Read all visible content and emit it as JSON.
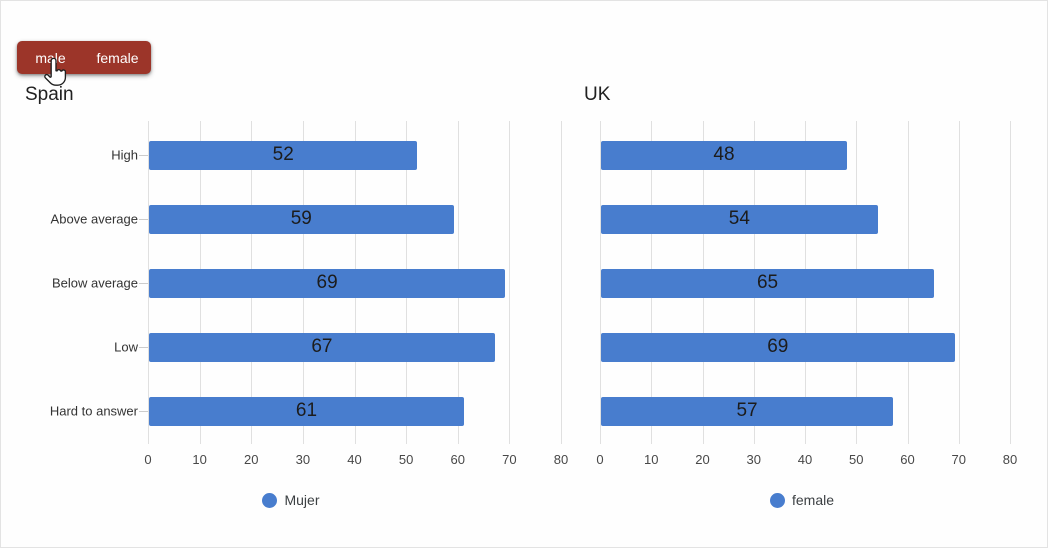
{
  "toggle": {
    "options": [
      {
        "label": "male"
      },
      {
        "label": "female"
      }
    ],
    "background": "#9c3529",
    "text_color": "#ffffff"
  },
  "cursor": {
    "icon": "hand-pointer"
  },
  "colors": {
    "bar": "#487dce",
    "grid": "#e0e0e0",
    "axis_tick": "#cccccc"
  },
  "chart_data": [
    {
      "type": "bar",
      "orientation": "horizontal",
      "title": "Spain",
      "categories": [
        "High",
        "Above average",
        "Below average",
        "Low",
        "Hard to answer"
      ],
      "values": [
        52,
        59,
        69,
        67,
        61
      ],
      "series_label": "Mujer",
      "xlim": [
        0,
        80
      ],
      "xticks": [
        0,
        10,
        20,
        30,
        40,
        50,
        60,
        70,
        80
      ],
      "grid": true,
      "show_category_labels": true,
      "legend_position": "bottom"
    },
    {
      "type": "bar",
      "orientation": "horizontal",
      "title": "UK",
      "categories": [
        "High",
        "Above average",
        "Below average",
        "Low",
        "Hard to answer"
      ],
      "values": [
        48,
        54,
        65,
        69,
        57
      ],
      "series_label": "female",
      "xlim": [
        0,
        80
      ],
      "xticks": [
        0,
        10,
        20,
        30,
        40,
        50,
        60,
        70,
        80
      ],
      "grid": true,
      "show_category_labels": false,
      "legend_position": "bottom"
    }
  ]
}
